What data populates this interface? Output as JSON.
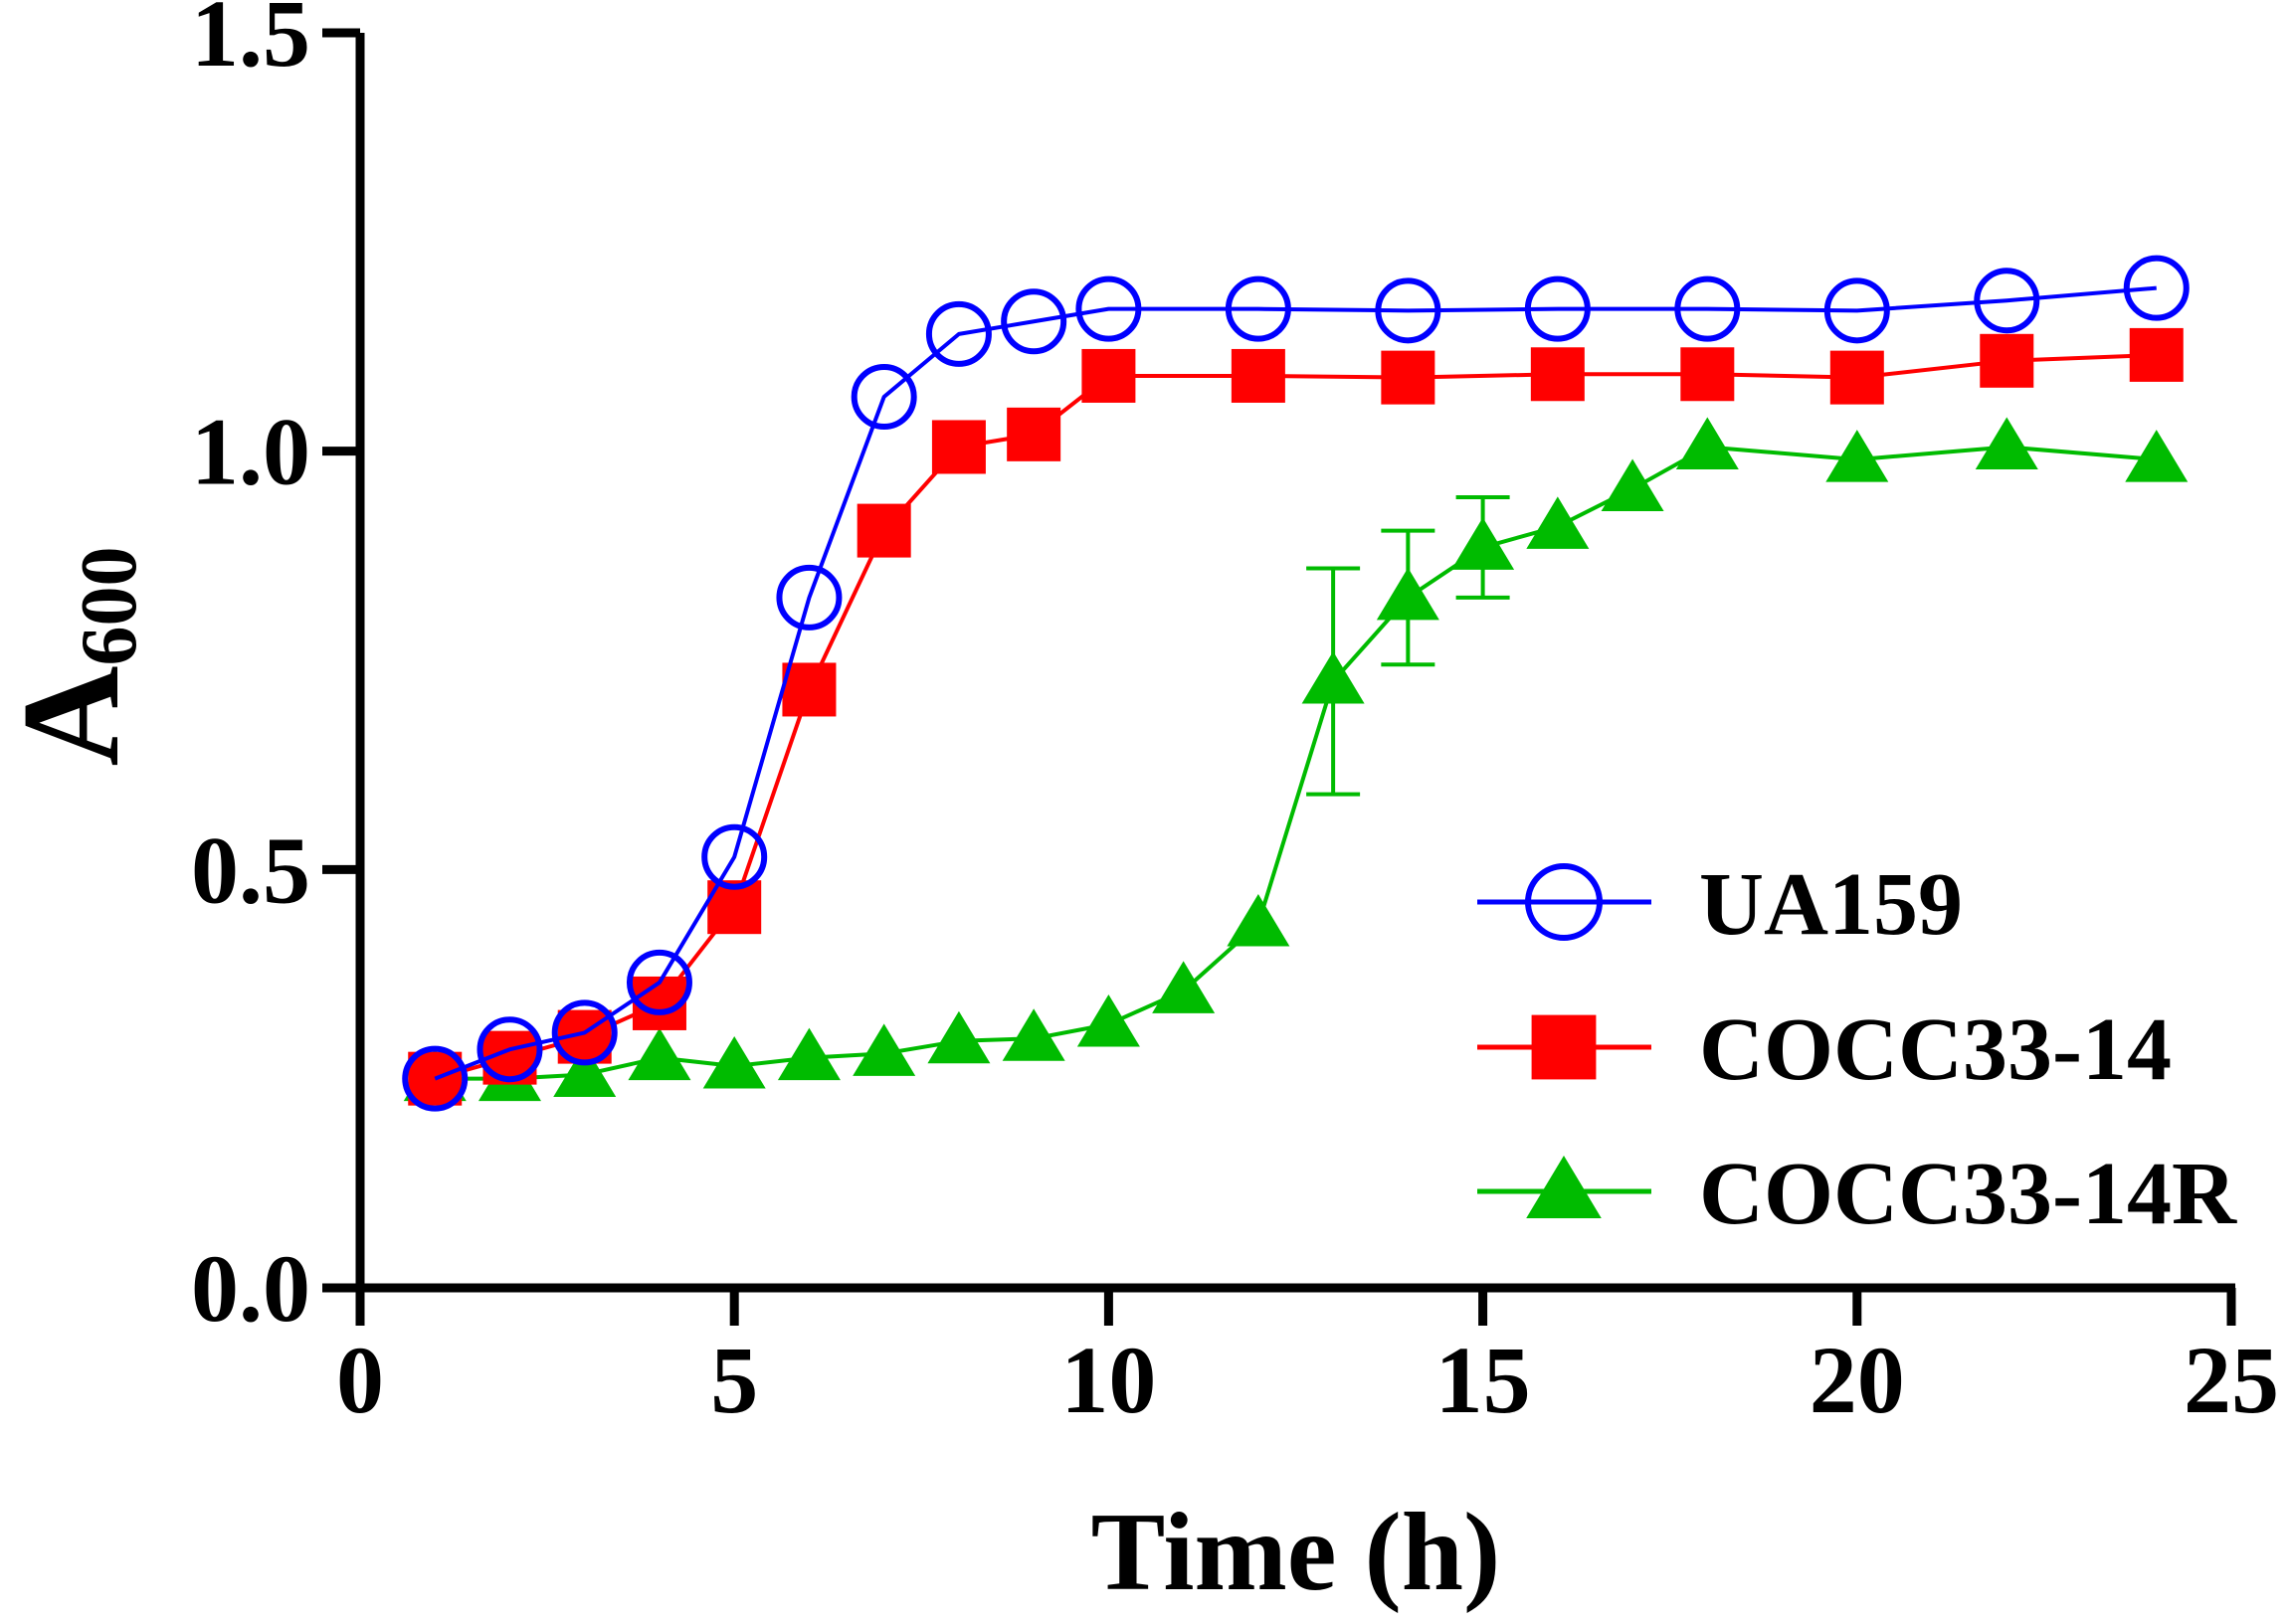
{
  "chart_data": {
    "type": "line",
    "title": "",
    "xlabel": "Time (h)",
    "ylabel": "A",
    "ylabel_subscript": "600",
    "xlim": [
      0,
      25
    ],
    "ylim": [
      0,
      1.5
    ],
    "xticks": [
      0,
      5,
      10,
      15,
      20,
      25
    ],
    "xtick_labels": [
      "0",
      "5",
      "10",
      "15",
      "20",
      "25"
    ],
    "yticks": [
      0,
      0.5,
      1.0,
      1.5
    ],
    "ytick_labels": [
      "0.0",
      "0.5",
      "1.0",
      "1.5"
    ],
    "grid": false,
    "legend_position": "bottom-right",
    "series": [
      {
        "name": "UA159",
        "color": "#0000ff",
        "marker": "open-circle",
        "x": [
          1,
          2,
          3,
          4,
          5,
          6,
          7,
          8,
          9,
          10,
          12,
          14,
          16,
          18,
          20,
          22,
          24
        ],
        "values": [
          0.25,
          0.285,
          0.305,
          0.365,
          0.515,
          0.825,
          1.065,
          1.14,
          1.155,
          1.17,
          1.17,
          1.168,
          1.17,
          1.17,
          1.168,
          1.18,
          1.195
        ]
      },
      {
        "name": "COCC33-14",
        "color": "#ff0000",
        "marker": "filled-square",
        "x": [
          1,
          2,
          3,
          4,
          5,
          6,
          7,
          8,
          9,
          10,
          12,
          14,
          16,
          18,
          20,
          22,
          24
        ],
        "values": [
          0.25,
          0.275,
          0.3,
          0.34,
          0.455,
          0.715,
          0.905,
          1.005,
          1.02,
          1.09,
          1.09,
          1.088,
          1.092,
          1.092,
          1.088,
          1.108,
          1.115
        ]
      },
      {
        "name": "COCC33-14R",
        "color": "#00bb00",
        "marker": "filled-triangle",
        "x": [
          1,
          2,
          3,
          4,
          5,
          6,
          7,
          8,
          9,
          10,
          11,
          12,
          13,
          14,
          15,
          16,
          17,
          18,
          20,
          22,
          24
        ],
        "values": [
          0.25,
          0.25,
          0.255,
          0.275,
          0.265,
          0.275,
          0.28,
          0.295,
          0.298,
          0.315,
          0.355,
          0.435,
          0.725,
          0.825,
          0.885,
          0.91,
          0.955,
          1.005,
          0.99,
          1.005,
          0.99
        ],
        "error": [
          0,
          0,
          0,
          0,
          0,
          0,
          0,
          0,
          0,
          0,
          0,
          0,
          0.135,
          0.08,
          0.06,
          0,
          0,
          0,
          0,
          0,
          0
        ]
      }
    ]
  }
}
